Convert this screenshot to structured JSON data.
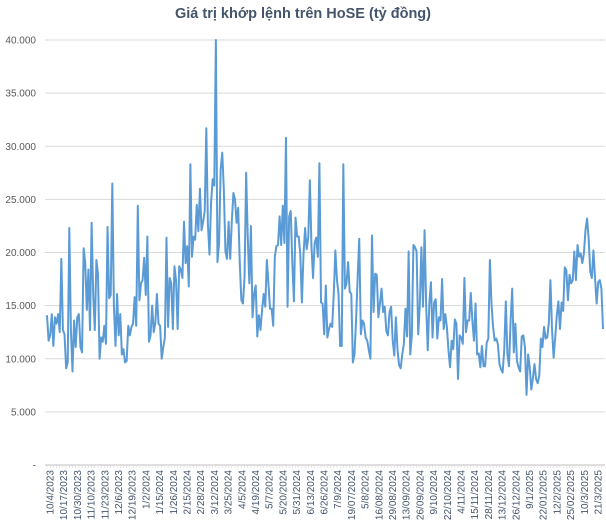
{
  "chart_data": {
    "type": "line",
    "title": "Giá trị khớp lệnh trên HoSE (tỷ đồng)",
    "xlabel": "",
    "ylabel": "",
    "ylim": [
      0,
      40000
    ],
    "yticks": [
      0,
      5000,
      10000,
      15000,
      20000,
      25000,
      30000,
      35000,
      40000
    ],
    "ytick_labels": [
      "-",
      "5.000",
      "10.000",
      "15.000",
      "20.000",
      "25.000",
      "30.000",
      "35.000",
      "40.000"
    ],
    "grid": "horizontal",
    "legend": "none",
    "line_color": "#5b9bd5",
    "x_tick_labels": [
      "10/4/2023",
      "10/17/2023",
      "10/30/2023",
      "11/10/2023",
      "11/23/2023",
      "12/6/2023",
      "12/19/2023",
      "1/2/2024",
      "1/15/2024",
      "1/26/2024",
      "2/15/2024",
      "2/28/2024",
      "3/12/2024",
      "3/25/2024",
      "4/5/2024",
      "4/19/2024",
      "5/7/2024",
      "5/20/2024",
      "5/31/2024",
      "6/13/2024",
      "6/26/2024",
      "7/9/2024",
      "19/07/2024",
      "5/8/2024",
      "16/08/2024",
      "29/08/2024",
      "13/09/2024",
      "26/09/2024",
      "9/10/2024",
      "22/10/2024",
      "4/11/2024",
      "15/11/2024",
      "28/11/2024",
      "13/12/2024",
      "26/12/2024",
      "9/1/2025",
      "22/01/2025",
      "12/2/2025",
      "25/02/2025",
      "10/3/2025",
      "21/3/2025"
    ],
    "values": [
      14100,
      11700,
      12200,
      14200,
      11200,
      13900,
      13300,
      14200,
      12500,
      19400,
      12700,
      12300,
      9100,
      9650,
      22300,
      12700,
      8800,
      13600,
      11100,
      13900,
      14200,
      11100,
      10600,
      20400,
      19000,
      14600,
      18400,
      12700,
      22800,
      16100,
      12700,
      19300,
      18000,
      10000,
      12000,
      11600,
      13100,
      11400,
      22400,
      15700,
      16000,
      26500,
      14900,
      11200,
      16100,
      12200,
      14200,
      10400,
      10900,
      9650,
      9800,
      13100,
      12200,
      13000,
      13300,
      15800,
      13100,
      24400,
      15500,
      17100,
      17400,
      19500,
      16000,
      21500,
      11600,
      12200,
      15000,
      12500,
      13400,
      16100,
      13300,
      13100,
      10000,
      11100,
      12000,
      21400,
      13000,
      17600,
      17100,
      12800,
      18700,
      17400,
      12800,
      18700,
      18400,
      17600,
      22900,
      19000,
      20600,
      16800,
      28300,
      19600,
      21500,
      21200,
      24500,
      22000,
      26000,
      22100,
      22900,
      23900,
      31700,
      22600,
      19800,
      24700,
      26900,
      26300,
      40000,
      19100,
      20900,
      27800,
      29400,
      25900,
      20100,
      19400,
      22900,
      19400,
      22900,
      25600,
      25000,
      22800,
      24200,
      19000,
      15500,
      15200,
      17700,
      27500,
      21500,
      17100,
      22500,
      13900,
      16100,
      16900,
      12100,
      14100,
      12700,
      14600,
      16100,
      14900,
      19300,
      17100,
      14700,
      14700,
      13100,
      19600,
      20600,
      20700,
      23400,
      20700,
      24400,
      20900,
      30800,
      14900,
      23400,
      23900,
      19000,
      15400,
      23300,
      21500,
      21500,
      19800,
      15300,
      19800,
      22300,
      20300,
      21400,
      26800,
      20600,
      17600,
      20900,
      21400,
      19600,
      28400,
      15300,
      15200,
      12300,
      16900,
      12000,
      12800,
      13300,
      13000,
      16100,
      20200,
      17400,
      16100,
      11200,
      11200,
      28300,
      16600,
      17100,
      19100,
      16300,
      16100,
      9650,
      10400,
      13600,
      17700,
      21300,
      12300,
      13600,
      13300,
      12000,
      11700,
      10800,
      10000,
      21600,
      14400,
      18000,
      17900,
      13900,
      15200,
      16600,
      14400,
      14900,
      12600,
      12200,
      14400,
      14900,
      11700,
      10300,
      13900,
      10900,
      9400,
      9100,
      10400,
      11400,
      14700,
      12100,
      20100,
      10400,
      12200,
      20700,
      20500,
      20100,
      12300,
      15000,
      20500,
      14900,
      22100,
      15000,
      10800,
      15200,
      17200,
      12000,
      15300,
      15600,
      11900,
      13900,
      13600,
      17500,
      12800,
      14200,
      13000,
      10800,
      9200,
      11700,
      10900,
      13700,
      13300,
      8100,
      12200,
      12000,
      11400,
      17600,
      12500,
      13600,
      13600,
      16200,
      13600,
      11700,
      15200,
      10400,
      10500,
      9200,
      11200,
      9300,
      9300,
      11500,
      11900,
      19300,
      15200,
      13000,
      11700,
      11900,
      11400,
      9500,
      9000,
      8700,
      10800,
      15400,
      10400,
      9300,
      13600,
      16600,
      10600,
      13300,
      9800,
      9200,
      8800,
      12100,
      12200,
      11100,
      6600,
      10400,
      9200,
      7100,
      8200,
      9500,
      8100,
      7700,
      8400,
      11900,
      11100,
      13000,
      11900,
      12000,
      13400,
      17400,
      12800,
      10100,
      12000,
      14100,
      15400,
      12800,
      15300,
      14500,
      18600,
      18300,
      15500,
      17900,
      17100,
      17400,
      20100,
      17400,
      20700,
      19600,
      19900,
      19000,
      19900,
      22100,
      23200,
      21300,
      18200,
      17600,
      20200,
      17600,
      15200,
      17200,
      17400,
      16600,
      12800
    ]
  }
}
